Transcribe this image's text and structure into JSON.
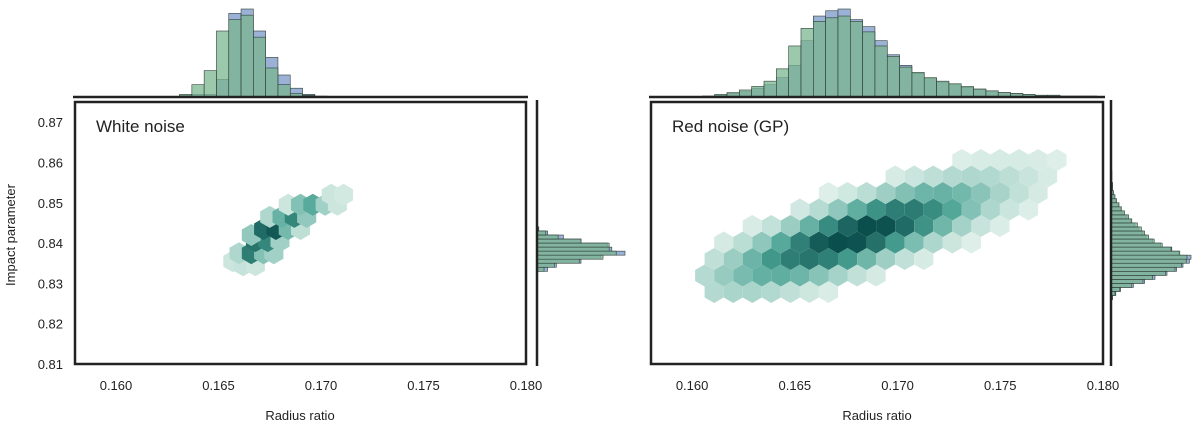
{
  "chart_data": [
    {
      "type": "hexbin",
      "title": "White noise",
      "xlabel": "Radius ratio",
      "ylabel": "Impact parameter",
      "xlim": [
        0.158,
        0.18
      ],
      "ylim": [
        0.81,
        0.875
      ],
      "xticks": [
        "0.160",
        "0.165",
        "0.170",
        "0.175",
        "0.180"
      ],
      "yticks": [
        "0.81",
        "0.82",
        "0.83",
        "0.84",
        "0.85",
        "0.86",
        "0.87"
      ],
      "grid": false,
      "hexbins": [
        {
          "x": 0.1657,
          "y": 0.8355,
          "d": 0.1
        },
        {
          "x": 0.1662,
          "y": 0.8345,
          "d": 0.12
        },
        {
          "x": 0.1668,
          "y": 0.8345,
          "d": 0.1
        },
        {
          "x": 0.166,
          "y": 0.8375,
          "d": 0.2
        },
        {
          "x": 0.1666,
          "y": 0.8375,
          "d": 0.75
        },
        {
          "x": 0.1672,
          "y": 0.8375,
          "d": 0.35
        },
        {
          "x": 0.1677,
          "y": 0.8375,
          "d": 0.25
        },
        {
          "x": 0.1668,
          "y": 0.8405,
          "d": 0.8
        },
        {
          "x": 0.1674,
          "y": 0.8405,
          "d": 0.7
        },
        {
          "x": 0.168,
          "y": 0.8405,
          "d": 0.25
        },
        {
          "x": 0.1666,
          "y": 0.842,
          "d": 0.3
        },
        {
          "x": 0.1672,
          "y": 0.8435,
          "d": 0.85
        },
        {
          "x": 0.1678,
          "y": 0.8435,
          "d": 0.95
        },
        {
          "x": 0.1684,
          "y": 0.8435,
          "d": 0.4
        },
        {
          "x": 0.169,
          "y": 0.8435,
          "d": 0.15
        },
        {
          "x": 0.1675,
          "y": 0.8465,
          "d": 0.2
        },
        {
          "x": 0.1681,
          "y": 0.8465,
          "d": 0.45
        },
        {
          "x": 0.1687,
          "y": 0.8465,
          "d": 0.7
        },
        {
          "x": 0.1693,
          "y": 0.8465,
          "d": 0.3
        },
        {
          "x": 0.1684,
          "y": 0.8495,
          "d": 0.1
        },
        {
          "x": 0.169,
          "y": 0.8495,
          "d": 0.35
        },
        {
          "x": 0.1696,
          "y": 0.8495,
          "d": 0.5
        },
        {
          "x": 0.1702,
          "y": 0.8495,
          "d": 0.25
        },
        {
          "x": 0.1708,
          "y": 0.8495,
          "d": 0.1
        },
        {
          "x": 0.1705,
          "y": 0.852,
          "d": 0.1
        },
        {
          "x": 0.1711,
          "y": 0.852,
          "d": 0.08
        }
      ],
      "hist_top": {
        "bin_start": 0.1625,
        "bin_width": 0.0006,
        "series": [
          {
            "values": [
              0.0,
              0.02,
              0.03,
              0.03,
              0.2,
              0.95,
              1.0,
              0.75,
              0.45,
              0.25,
              0.1,
              0.03,
              0.01
            ]
          },
          {
            "values": [
              0.0,
              0.03,
              0.14,
              0.3,
              0.75,
              0.88,
              0.93,
              0.68,
              0.33,
              0.14,
              0.04,
              0.02,
              0.0
            ]
          }
        ]
      },
      "hist_right": {
        "bin_start": 0.832,
        "bin_width": 0.001,
        "series": [
          {
            "values": [
              0.0,
              0.12,
              0.22,
              0.5,
              0.72,
              1.0,
              0.85,
              0.8,
              0.5,
              0.3,
              0.12,
              0.02
            ]
          },
          {
            "values": [
              0.0,
              0.08,
              0.2,
              0.48,
              0.75,
              0.9,
              0.82,
              0.82,
              0.5,
              0.24,
              0.1,
              0.02
            ]
          }
        ]
      }
    },
    {
      "type": "hexbin",
      "title": "Red noise (GP)",
      "xlabel": "Radius ratio",
      "ylabel": "",
      "xlim": [
        0.158,
        0.18
      ],
      "ylim": [
        0.81,
        0.875
      ],
      "xticks": [
        "0.160",
        "0.165",
        "0.170",
        "0.175",
        "0.180"
      ],
      "yticks": [],
      "grid": false,
      "density": {
        "x0": 0.168,
        "y0": 0.842,
        "sx": 0.004,
        "sy": 0.008,
        "rho": 0.78,
        "xrange": [
          0.1605,
          0.18
        ],
        "yrange": [
          0.826,
          0.8705
        ]
      },
      "hist_top": {
        "bin_start": 0.1605,
        "bin_width": 0.0006,
        "series": [
          {
            "values": [
              0.01,
              0.02,
              0.04,
              0.06,
              0.1,
              0.14,
              0.22,
              0.36,
              0.64,
              0.92,
              0.98,
              1.0,
              0.88,
              0.8,
              0.64,
              0.48,
              0.36,
              0.27,
              0.21,
              0.17,
              0.14,
              0.11,
              0.09,
              0.07,
              0.05,
              0.04,
              0.03,
              0.02,
              0.02,
              0.01,
              0.01,
              0.01
            ]
          },
          {
            "values": [
              0.01,
              0.03,
              0.05,
              0.08,
              0.12,
              0.18,
              0.32,
              0.58,
              0.78,
              0.86,
              0.9,
              0.92,
              0.86,
              0.74,
              0.58,
              0.46,
              0.34,
              0.28,
              0.22,
              0.18,
              0.15,
              0.12,
              0.09,
              0.07,
              0.05,
              0.04,
              0.03,
              0.02,
              0.02,
              0.01,
              0.01,
              0.01
            ]
          }
        ]
      },
      "hist_right": {
        "bin_start": 0.826,
        "bin_width": 0.001,
        "series": [
          {
            "values": [
              0.02,
              0.06,
              0.12,
              0.28,
              0.42,
              0.55,
              0.7,
              0.82,
              0.9,
              0.98,
              1.0,
              0.85,
              0.76,
              0.62,
              0.52,
              0.44,
              0.4,
              0.35,
              0.3,
              0.25,
              0.2,
              0.15,
              0.12,
              0.09,
              0.06,
              0.04,
              0.03,
              0.02,
              0.02,
              0.01,
              0.01,
              0.01
            ]
          },
          {
            "values": [
              0.02,
              0.05,
              0.11,
              0.26,
              0.4,
              0.52,
              0.68,
              0.8,
              0.88,
              0.94,
              0.95,
              0.86,
              0.75,
              0.64,
              0.54,
              0.47,
              0.42,
              0.38,
              0.33,
              0.26,
              0.22,
              0.17,
              0.13,
              0.1,
              0.07,
              0.05,
              0.03,
              0.02,
              0.02,
              0.01,
              0.01,
              0.01
            ]
          }
        ]
      }
    }
  ],
  "colors": {
    "hist_blue": "#8aa3cf",
    "hist_green": "#7bb68f",
    "hex_high": "#0b4f4d",
    "hex_low": "#e9f5ef",
    "axis": "#222222"
  }
}
